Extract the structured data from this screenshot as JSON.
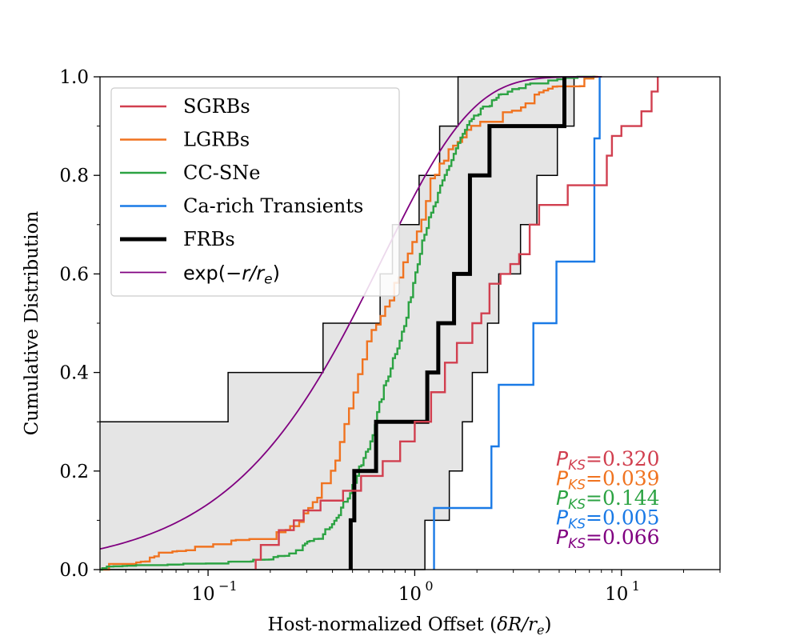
{
  "chart_data": {
    "type": "line",
    "subtype": "cumulative-step",
    "xscale": "log",
    "xlim": [
      0.03,
      30
    ],
    "ylim": [
      0.0,
      1.0
    ],
    "xlabel": "Host-normalized Offset (δR/rₑ)",
    "xlabel_prefix": "Host-normalized Offset (",
    "xlabel_math": "δR/r",
    "xlabel_sub": "e",
    "xlabel_suffix": ")",
    "ylabel": "Cumulative Distribution",
    "yticks": [
      0.0,
      0.2,
      0.4,
      0.6,
      0.8,
      1.0
    ],
    "ytick_labels": [
      "0.0",
      "0.2",
      "0.4",
      "0.6",
      "0.8",
      "1.0"
    ],
    "xticks": [
      {
        "value": 0.1,
        "base": "10",
        "exp": "−1"
      },
      {
        "value": 1,
        "base": "10",
        "exp": "0"
      },
      {
        "value": 10,
        "base": "10",
        "exp": "1"
      }
    ],
    "legend": {
      "location": "upper-left",
      "entries": [
        {
          "key": "sgrb",
          "label": "SGRBs"
        },
        {
          "key": "lgrb",
          "label": "LGRBs"
        },
        {
          "key": "ccsn",
          "label": "CC-SNe"
        },
        {
          "key": "carich",
          "label": "Ca-rich Transients"
        },
        {
          "key": "frb",
          "label": "FRBs"
        },
        {
          "key": "expo",
          "label_prefix": "exp(−",
          "label_math": "r/r",
          "label_sub": "e",
          "label_suffix": ")"
        }
      ]
    },
    "colors": {
      "sgrb": "#d13f4f",
      "lgrb": "#f07320",
      "ccsn": "#2ca343",
      "carich": "#1a7ae6",
      "frb": "#000000",
      "expo": "#800080",
      "band_fill": "#e5e5e5",
      "band_edge": "#000000"
    },
    "series": [
      {
        "key": "frb",
        "name": "FRBs",
        "x": [
          0.49,
          0.51,
          0.65,
          1.15,
          1.3,
          1.55,
          1.85,
          2.3,
          5.3
        ],
        "y": [
          0.1,
          0.2,
          0.3,
          0.4,
          0.5,
          0.6,
          0.8,
          0.9,
          1.0
        ]
      },
      {
        "key": "carich",
        "name": "Ca-rich Transients",
        "x": [
          1.24,
          2.35,
          2.55,
          3.75,
          4.85,
          7.4,
          7.85
        ],
        "y": [
          0.125,
          0.25,
          0.375,
          0.5,
          0.625,
          0.875,
          1.0
        ]
      },
      {
        "key": "sgrb",
        "name": "SGRBs",
        "x": [
          0.17,
          0.18,
          0.22,
          0.26,
          0.29,
          0.35,
          0.45,
          0.55,
          0.7,
          0.85,
          1.0,
          1.2,
          1.4,
          1.6,
          1.9,
          2.1,
          2.3,
          2.6,
          2.9,
          3.2,
          3.6,
          4.0,
          5.5,
          8.5,
          9.0,
          10.0,
          12.5,
          14.0,
          15.0
        ],
        "y": [
          0.02,
          0.05,
          0.08,
          0.1,
          0.12,
          0.14,
          0.16,
          0.19,
          0.22,
          0.26,
          0.3,
          0.36,
          0.42,
          0.46,
          0.5,
          0.52,
          0.58,
          0.6,
          0.62,
          0.64,
          0.7,
          0.74,
          0.78,
          0.84,
          0.88,
          0.9,
          0.93,
          0.97,
          1.0
        ]
      }
    ],
    "band": {
      "lower": {
        "x": [
          1.12,
          1.47,
          1.7,
          1.9,
          2.25,
          2.55,
          3.25,
          3.9,
          4.9,
          5.9,
          8.05
        ],
        "y": [
          0.1,
          0.2,
          0.3,
          0.4,
          0.5,
          0.6,
          0.7,
          0.8,
          0.9,
          1.0,
          1.0
        ]
      },
      "upper": {
        "x": [
          0.03,
          0.125,
          0.36,
          0.68,
          0.78,
          1.05,
          1.32,
          1.62,
          2.3,
          5.9
        ],
        "y": [
          0.3,
          0.4,
          0.5,
          0.6,
          0.7,
          0.8,
          0.9,
          1.0,
          1.0,
          1.0
        ]
      }
    },
    "smooth_series": [
      {
        "key": "lgrb",
        "name": "LGRBs",
        "jitter": 0.022,
        "steps": 110,
        "anchors": [
          [
            0.03,
            0.0
          ],
          [
            0.047,
            0.01
          ],
          [
            0.052,
            0.02
          ],
          [
            0.06,
            0.03
          ],
          [
            0.1,
            0.04
          ],
          [
            0.13,
            0.05
          ],
          [
            0.2,
            0.06
          ],
          [
            0.25,
            0.08
          ],
          [
            0.3,
            0.12
          ],
          [
            0.36,
            0.17
          ],
          [
            0.41,
            0.22
          ],
          [
            0.46,
            0.29
          ],
          [
            0.5,
            0.36
          ],
          [
            0.55,
            0.42
          ],
          [
            0.6,
            0.48
          ],
          [
            0.7,
            0.52
          ],
          [
            0.85,
            0.6
          ],
          [
            0.95,
            0.65
          ],
          [
            1.1,
            0.72
          ],
          [
            1.2,
            0.79
          ],
          [
            1.5,
            0.86
          ],
          [
            1.7,
            0.88
          ],
          [
            2.0,
            0.9
          ],
          [
            2.5,
            0.91
          ],
          [
            3.0,
            0.93
          ],
          [
            4.0,
            0.96
          ],
          [
            6.0,
            0.99
          ],
          [
            7.7,
            1.0
          ]
        ]
      },
      {
        "key": "ccsn",
        "name": "CC-SNe",
        "jitter": 0.015,
        "steps": 220,
        "anchors": [
          [
            0.03,
            0.0
          ],
          [
            0.08,
            0.005
          ],
          [
            0.15,
            0.01
          ],
          [
            0.2,
            0.02
          ],
          [
            0.25,
            0.03
          ],
          [
            0.3,
            0.05
          ],
          [
            0.35,
            0.06
          ],
          [
            0.4,
            0.1
          ],
          [
            0.45,
            0.13
          ],
          [
            0.5,
            0.17
          ],
          [
            0.6,
            0.25
          ],
          [
            0.7,
            0.36
          ],
          [
            0.8,
            0.44
          ],
          [
            0.9,
            0.5
          ],
          [
            1.0,
            0.6
          ],
          [
            1.1,
            0.68
          ],
          [
            1.2,
            0.72
          ],
          [
            1.4,
            0.8
          ],
          [
            1.6,
            0.86
          ],
          [
            1.8,
            0.9
          ],
          [
            2.1,
            0.93
          ],
          [
            2.6,
            0.96
          ],
          [
            3.5,
            0.98
          ],
          [
            5.0,
            0.99
          ],
          [
            7.5,
            1.0
          ]
        ]
      }
    ],
    "model_curve": {
      "key": "expo",
      "name": "exp(−r/rₑ)",
      "form": "1 - exp(-x/0.7)"
    },
    "annotations": [
      {
        "key": "sgrb",
        "label": "P",
        "sub": "KS",
        "value": "=0.320"
      },
      {
        "key": "lgrb",
        "label": "P",
        "sub": "KS",
        "value": "=0.039"
      },
      {
        "key": "ccsn",
        "label": "P",
        "sub": "KS",
        "value": "=0.144"
      },
      {
        "key": "carich",
        "label": "P",
        "sub": "KS",
        "value": "=0.005"
      },
      {
        "key": "expo",
        "label": "P",
        "sub": "KS",
        "value": "=0.066"
      }
    ]
  }
}
